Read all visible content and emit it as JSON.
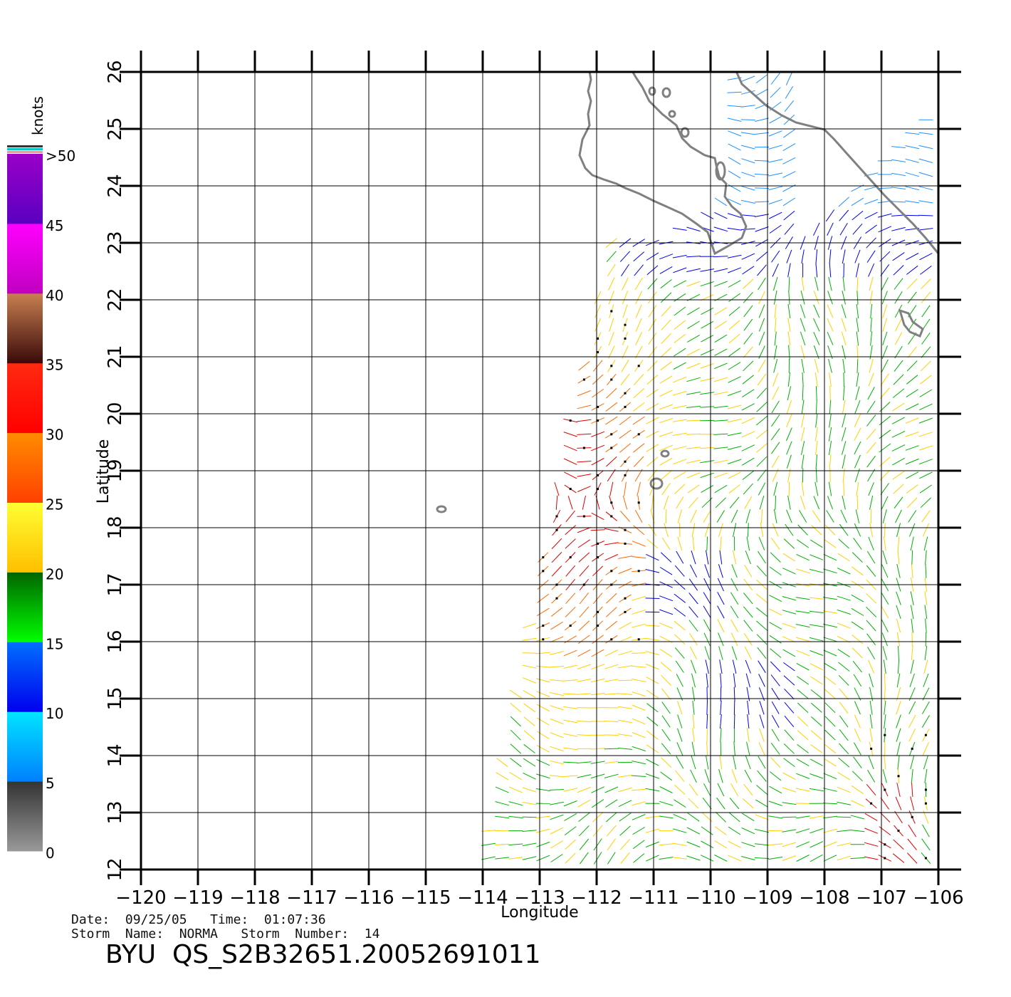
{
  "axes": {
    "xlabel": "Longitude",
    "ylabel": "Latitude",
    "lon_ticks": [
      "−120",
      "−119",
      "−118",
      "−117",
      "−116",
      "−115",
      "−114",
      "−113",
      "−112",
      "−111",
      "−110",
      "−109",
      "−108",
      "−107",
      "−106"
    ],
    "lat_ticks": [
      "12",
      "13",
      "14",
      "15",
      "16",
      "17",
      "18",
      "19",
      "20",
      "21",
      "22",
      "23",
      "24",
      "25",
      "26"
    ],
    "lon_range": [
      -120,
      -106
    ],
    "lat_range": [
      12,
      26
    ]
  },
  "colorbar": {
    "unit": "knots",
    "labels": [
      "0",
      "5",
      "10",
      "15",
      "20",
      "25",
      "30",
      "35",
      "40",
      "45",
      ">50"
    ],
    "segments": [
      {
        "from": 0,
        "to": 5,
        "top": "#333333",
        "bottom": "#999999"
      },
      {
        "from": 5,
        "to": 10,
        "top": "#00e5ff",
        "bottom": "#0080ff"
      },
      {
        "from": 10,
        "to": 15,
        "top": "#0070ff",
        "bottom": "#0000ee"
      },
      {
        "from": 15,
        "to": 20,
        "top": "#006400",
        "bottom": "#00ff00"
      },
      {
        "from": 20,
        "to": 25,
        "top": "#ffff33",
        "bottom": "#ffbf00"
      },
      {
        "from": 25,
        "to": 30,
        "top": "#ff8c00",
        "bottom": "#ff4000"
      },
      {
        "from": 30,
        "to": 35,
        "top": "#ff2a10",
        "bottom": "#ff0000"
      },
      {
        "from": 35,
        "to": 40,
        "top": "#c88050",
        "bottom": "#3a0a0a"
      },
      {
        "from": 40,
        "to": 45,
        "top": "#ff00ff",
        "bottom": "#c000c0"
      },
      {
        "from": 45,
        "to": 50,
        "top": "#9a00c8",
        "bottom": "#5a00c0"
      }
    ],
    "cap_colors": [
      "#e0a0a0",
      "#00c8c8",
      "#333333"
    ]
  },
  "footer": {
    "line1": "Date:  09/25/05   Time:  01:07:36",
    "line2": "Storm  Name:  NORMA   Storm  Number:  14",
    "product": "BYU  QS_S2B32651.20052691011"
  },
  "colors": {
    "coast": "#808080",
    "calm": "#888888",
    "light": "#1e90ff",
    "moderate": "#0000ee",
    "fresh": "#00b000",
    "strong": "#ffd000",
    "gale": "#ff6a00",
    "storm": "#e00000",
    "rain_flag": "#000000"
  }
}
